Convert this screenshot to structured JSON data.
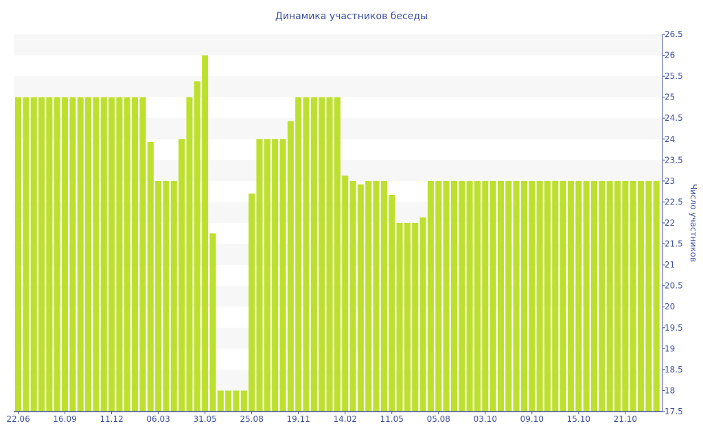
{
  "chart_data": {
    "type": "bar",
    "title": "Динамика участников беседы",
    "xlabel": "",
    "ylabel": "Число участников",
    "ylim": [
      17.5,
      26.5
    ],
    "y_ticks": [
      "17.5",
      "18",
      "18.5",
      "19",
      "19.5",
      "20",
      "20.5",
      "21",
      "21.5",
      "22",
      "22.5",
      "23",
      "23.5",
      "24",
      "24.5",
      "25",
      "25.5",
      "26",
      "26.5"
    ],
    "y_axis_side": "right",
    "grid": "alternating horizontal bands",
    "x_tick_every": 6,
    "x_tick_labels": [
      "22.06",
      "16.09",
      "11.12",
      "06.03",
      "31.05",
      "25.08",
      "19.11",
      "14.02",
      "11.05",
      "05.08",
      "03.10",
      "09.10",
      "15.10",
      "21.10"
    ],
    "values": [
      25,
      25,
      25,
      25,
      25,
      25,
      25,
      25,
      25,
      25,
      25,
      25,
      25,
      25,
      25,
      25,
      25,
      23.93,
      23,
      23,
      23,
      24,
      25,
      25.38,
      26,
      21.75,
      18,
      18,
      18,
      18,
      22.7,
      24,
      24,
      24,
      24,
      24.43,
      25,
      25,
      25,
      25,
      25,
      25,
      23.13,
      23,
      22.92,
      23,
      23,
      23,
      22.67,
      22,
      22,
      22,
      22.13,
      23,
      23,
      23,
      23,
      23,
      23,
      23,
      23,
      23,
      23,
      23,
      23,
      23,
      23,
      23,
      23,
      23,
      23,
      23,
      23,
      23,
      23,
      23,
      23,
      23,
      23,
      23,
      23,
      23,
      23
    ],
    "bar_color": "#bde02f",
    "band_color": "#f7f7f7",
    "axis_color": "#3d4f9f"
  }
}
